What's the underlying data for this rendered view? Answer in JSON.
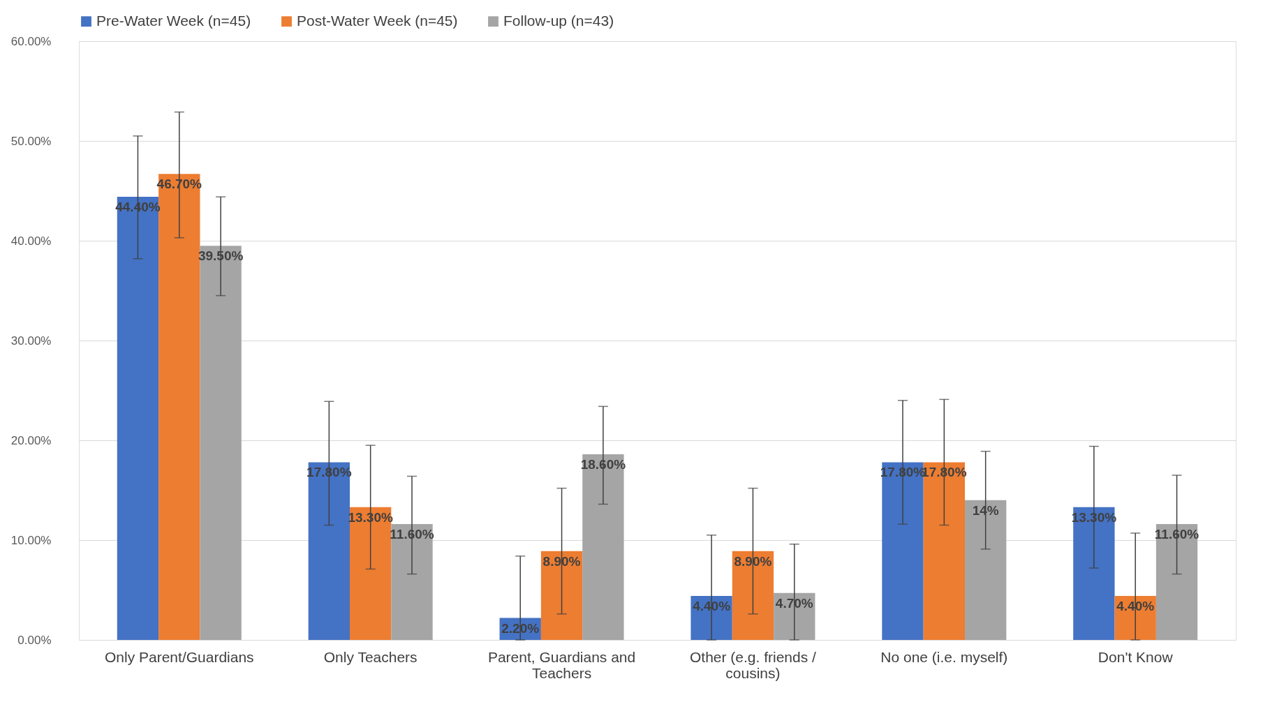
{
  "chart_data": {
    "type": "bar",
    "categories": [
      "Only Parent/Guardians",
      "Only Teachers",
      "Parent, Guardians and Teachers",
      "Other (e.g. friends / cousins)",
      "No one (i.e. myself)",
      "Don't Know"
    ],
    "series": [
      {
        "name": "Pre-Water Week (n=45)",
        "color": "#4472c4",
        "values": [
          44.4,
          17.8,
          2.2,
          4.4,
          17.8,
          13.3
        ],
        "value_labels": [
          "44.40%",
          "17.80%",
          "2.20%",
          "4.40%",
          "17.80%",
          "13.30%"
        ],
        "errors": [
          [
            38.2,
            50.5
          ],
          [
            11.5,
            23.9
          ],
          [
            0,
            8.4
          ],
          [
            0,
            10.5
          ],
          [
            11.6,
            24.0
          ],
          [
            7.2,
            19.4
          ]
        ]
      },
      {
        "name": "Post-Water Week (n=45)",
        "color": "#ed7d31",
        "values": [
          46.7,
          13.3,
          8.9,
          8.9,
          17.8,
          4.4
        ],
        "value_labels": [
          "46.70%",
          "13.30%",
          "8.90%",
          "8.90%",
          "17.80%",
          "4.40%"
        ],
        "errors": [
          [
            40.3,
            52.9
          ],
          [
            7.1,
            19.5
          ],
          [
            2.6,
            15.2
          ],
          [
            2.6,
            15.2
          ],
          [
            11.5,
            24.1
          ],
          [
            0,
            10.7
          ]
        ]
      },
      {
        "name": "Follow-up (n=43)",
        "color": "#a5a5a5",
        "values": [
          39.5,
          11.6,
          18.6,
          4.7,
          14,
          11.6
        ],
        "value_labels": [
          "39.50%",
          "11.60%",
          "18.60%",
          "4.70%",
          "14%",
          "11.60%"
        ],
        "errors": [
          [
            34.5,
            44.4
          ],
          [
            6.6,
            16.4
          ],
          [
            13.6,
            23.4
          ],
          [
            0,
            9.6
          ],
          [
            9.1,
            18.9
          ],
          [
            6.6,
            16.5
          ]
        ]
      }
    ],
    "ylim": [
      0,
      60
    ],
    "yticks": [
      {
        "value": 0,
        "label": "0.00%"
      },
      {
        "value": 10,
        "label": "10.00%"
      },
      {
        "value": 20,
        "label": "20.00%"
      },
      {
        "value": 30,
        "label": "30.00%"
      },
      {
        "value": 40,
        "label": "40.00%"
      },
      {
        "value": 50,
        "label": "50.00%"
      },
      {
        "value": 60,
        "label": "60.00%"
      }
    ],
    "grid": "y",
    "legend": "top"
  }
}
